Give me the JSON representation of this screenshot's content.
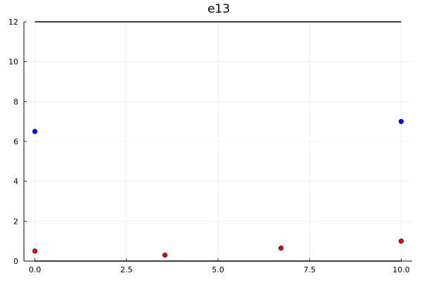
{
  "chart_data": {
    "type": "scatter",
    "title": "e13",
    "xlabel": "",
    "ylabel": "",
    "xlim": [
      -0.3,
      10.3
    ],
    "ylim": [
      0,
      12
    ],
    "x_ticks": [
      0.0,
      2.5,
      5.0,
      7.5,
      10.0
    ],
    "x_tick_labels": [
      "0.0",
      "2.5",
      "5.0",
      "7.5",
      "10.0"
    ],
    "y_ticks": [
      0,
      2,
      4,
      6,
      8,
      10,
      12
    ],
    "y_tick_labels": [
      "0",
      "2",
      "4",
      "6",
      "8",
      "10",
      "12"
    ],
    "grid": true,
    "legend": "none",
    "lines": [
      {
        "y": 12,
        "x": [
          0,
          10
        ],
        "color": "#000000"
      },
      {
        "y": 0,
        "x": [
          0,
          10
        ],
        "color": "#000000"
      }
    ],
    "series": [
      {
        "color": "#0000ff",
        "x": [
          0,
          10
        ],
        "y": [
          6.5,
          7.0
        ]
      },
      {
        "color": "#ff0000",
        "x": [
          0,
          3.55,
          6.72,
          10
        ],
        "y": [
          0.5,
          0.3,
          0.65,
          1.0
        ]
      }
    ]
  }
}
